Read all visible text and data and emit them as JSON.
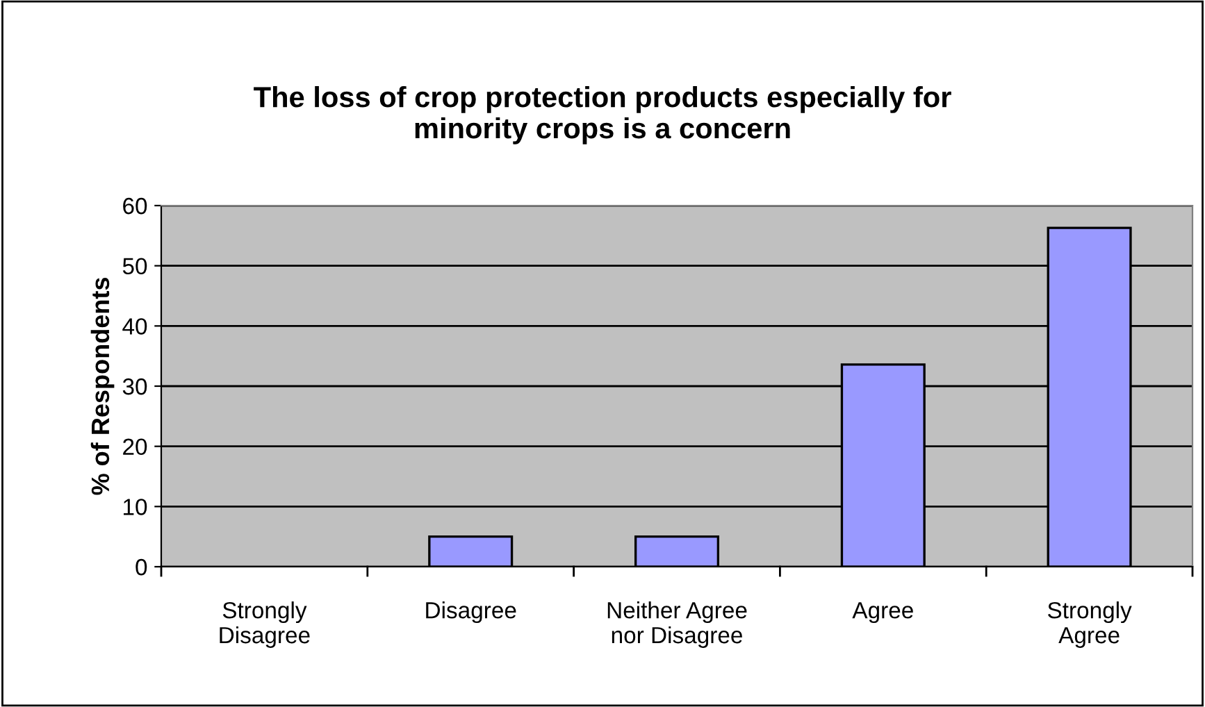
{
  "chart_data": {
    "type": "bar",
    "title": "The loss of crop protection products especially for\nminority crops is a concern",
    "ylabel": "% of Respondents",
    "categories": [
      "Strongly\nDisagree",
      "Disagree",
      "Neither Agree\nnor Disagree",
      "Agree",
      "Strongly\nAgree"
    ],
    "values": [
      0,
      5,
      5,
      33.6,
      56.3
    ],
    "color": "#9999ff",
    "ylim": [
      0,
      60
    ],
    "yticks": [
      0,
      10,
      20,
      30,
      40,
      50,
      60
    ],
    "grid": "y",
    "legend": false
  }
}
